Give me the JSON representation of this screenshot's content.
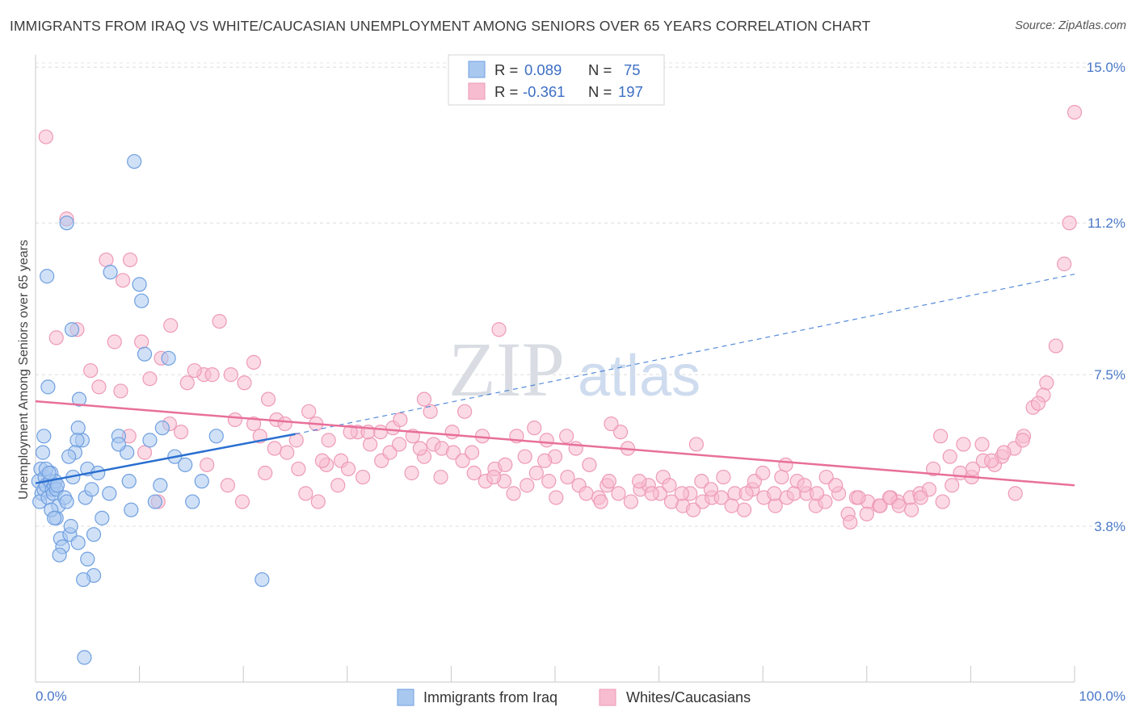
{
  "title": "IMMIGRANTS FROM IRAQ VS WHITE/CAUCASIAN UNEMPLOYMENT AMONG SENIORS OVER 65 YEARS CORRELATION CHART",
  "source": "Source: ZipAtlas.com",
  "watermark": {
    "zip": "ZIP",
    "atlas": "atlas"
  },
  "colors": {
    "blue_fill": "#a9c8f0",
    "blue_stroke": "#6f9fe0",
    "blue_line": "#2a6fd0",
    "pink_fill": "#f7bcd0",
    "pink_stroke": "#ee9ab8",
    "pink_line": "#e8709a",
    "tick_text": "#4a78c8"
  },
  "legend_top": {
    "rows": [
      {
        "r_label": "R =",
        "r_value": "0.089",
        "n_label": "N =",
        "n_value": "75",
        "color": "blue"
      },
      {
        "r_label": "R =",
        "r_value": "-0.361",
        "n_label": "N =",
        "n_value": "197",
        "color": "pink"
      }
    ]
  },
  "chart_data": {
    "type": "scatter",
    "title": "IMMIGRANTS FROM IRAQ VS WHITE/CAUCASIAN UNEMPLOYMENT AMONG SENIORS OVER 65 YEARS CORRELATION CHART",
    "xlabel": "",
    "ylabel": "Unemployment Among Seniors over 65 years",
    "x_tick_labels": [
      "0.0%",
      "100.0%"
    ],
    "y_tick_labels": [
      "3.8%",
      "7.5%",
      "11.2%",
      "15.0%"
    ],
    "y_ticks": [
      3.8,
      7.5,
      11.2,
      15.0
    ],
    "xlim": [
      0,
      100
    ],
    "ylim": [
      0.0,
      15.3
    ],
    "grid": true,
    "legend_placement": "bottom",
    "series": [
      {
        "name": "Immigrants from Iraq",
        "color": "blue",
        "points": [
          [
            0.3,
            4.9
          ],
          [
            0.5,
            5.2
          ],
          [
            0.6,
            4.6
          ],
          [
            0.8,
            4.7
          ],
          [
            0.4,
            4.4
          ],
          [
            0.9,
            5.0
          ],
          [
            1.0,
            4.8
          ],
          [
            1.2,
            4.5
          ],
          [
            1.4,
            4.9
          ],
          [
            1.5,
            5.1
          ],
          [
            1.6,
            4.7
          ],
          [
            1.7,
            4.6
          ],
          [
            1.8,
            4.8
          ],
          [
            1.9,
            4.9
          ],
          [
            2.0,
            4.7
          ],
          [
            2.1,
            4.8
          ],
          [
            0.7,
            5.6
          ],
          [
            0.8,
            6.0
          ],
          [
            1.0,
            5.2
          ],
          [
            1.3,
            5.1
          ],
          [
            1.1,
            9.9
          ],
          [
            2.0,
            4.0
          ],
          [
            2.2,
            4.3
          ],
          [
            2.4,
            3.5
          ],
          [
            2.6,
            3.3
          ],
          [
            1.5,
            4.2
          ],
          [
            1.8,
            4.0
          ],
          [
            2.8,
            4.5
          ],
          [
            3.0,
            4.4
          ],
          [
            3.3,
            3.6
          ],
          [
            3.4,
            3.8
          ],
          [
            4.1,
            3.4
          ],
          [
            4.5,
            5.9
          ],
          [
            4.8,
            4.5
          ],
          [
            4.2,
            6.9
          ],
          [
            4.1,
            6.2
          ],
          [
            4.0,
            5.9
          ],
          [
            3.6,
            5.0
          ],
          [
            3.8,
            5.6
          ],
          [
            3.2,
            5.5
          ],
          [
            5.0,
            5.2
          ],
          [
            5.4,
            4.7
          ],
          [
            5.6,
            2.6
          ],
          [
            4.6,
            2.5
          ],
          [
            5.0,
            3.0
          ],
          [
            5.6,
            3.6
          ],
          [
            6.0,
            5.1
          ],
          [
            6.4,
            4.0
          ],
          [
            7.1,
            4.6
          ],
          [
            8.0,
            6.0
          ],
          [
            8.8,
            5.6
          ],
          [
            9.2,
            4.2
          ],
          [
            10.5,
            8.0
          ],
          [
            11.0,
            5.9
          ],
          [
            11.5,
            4.4
          ],
          [
            12.0,
            4.8
          ],
          [
            12.2,
            6.2
          ],
          [
            12.8,
            7.9
          ],
          [
            13.4,
            5.5
          ],
          [
            14.4,
            5.3
          ],
          [
            15.1,
            4.4
          ],
          [
            16.0,
            4.9
          ],
          [
            17.4,
            6.0
          ],
          [
            21.8,
            2.5
          ],
          [
            3.0,
            11.2
          ],
          [
            3.5,
            8.6
          ],
          [
            7.2,
            10.0
          ],
          [
            8.0,
            5.8
          ],
          [
            9.0,
            4.9
          ],
          [
            9.5,
            12.7
          ],
          [
            10.0,
            9.7
          ],
          [
            10.2,
            9.3
          ],
          [
            1.2,
            7.2
          ],
          [
            2.3,
            3.1
          ],
          [
            4.7,
            0.6
          ]
        ]
      },
      {
        "name": "Whites/Caucasians",
        "color": "pink",
        "points": [
          [
            1.0,
            13.3
          ],
          [
            3.0,
            11.3
          ],
          [
            6.8,
            10.3
          ],
          [
            7.6,
            8.3
          ],
          [
            8.4,
            9.8
          ],
          [
            9.1,
            10.3
          ],
          [
            10.2,
            8.3
          ],
          [
            11.0,
            7.4
          ],
          [
            12.1,
            7.9
          ],
          [
            13.0,
            8.7
          ],
          [
            14.6,
            7.3
          ],
          [
            16.2,
            7.5
          ],
          [
            17.0,
            7.5
          ],
          [
            18.8,
            7.5
          ],
          [
            19.2,
            6.4
          ],
          [
            20.1,
            7.3
          ],
          [
            21.0,
            6.3
          ],
          [
            21.6,
            6.0
          ],
          [
            22.4,
            6.9
          ],
          [
            23.0,
            5.7
          ],
          [
            24.2,
            5.6
          ],
          [
            25.1,
            5.9
          ],
          [
            26.3,
            6.6
          ],
          [
            27.0,
            6.3
          ],
          [
            28.2,
            5.9
          ],
          [
            29.4,
            5.4
          ],
          [
            30.1,
            5.2
          ],
          [
            31.0,
            6.1
          ],
          [
            32.2,
            5.8
          ],
          [
            33.3,
            5.4
          ],
          [
            34.1,
            5.6
          ],
          [
            35.0,
            5.8
          ],
          [
            36.2,
            5.1
          ],
          [
            37.4,
            5.5
          ],
          [
            38.3,
            5.8
          ],
          [
            39.1,
            5.7
          ],
          [
            40.2,
            5.6
          ],
          [
            41.1,
            5.4
          ],
          [
            42.0,
            5.6
          ],
          [
            43.3,
            4.9
          ],
          [
            44.2,
            5.2
          ],
          [
            45.1,
            4.9
          ],
          [
            46.0,
            4.6
          ],
          [
            47.3,
            4.8
          ],
          [
            48.2,
            5.1
          ],
          [
            49.4,
            4.9
          ],
          [
            50.1,
            4.5
          ],
          [
            51.2,
            5.0
          ],
          [
            52.3,
            4.8
          ],
          [
            53.0,
            4.6
          ],
          [
            54.2,
            4.5
          ],
          [
            55.0,
            4.8
          ],
          [
            56.1,
            4.6
          ],
          [
            57.3,
            4.4
          ],
          [
            58.2,
            4.7
          ],
          [
            59.0,
            4.8
          ],
          [
            60.1,
            4.6
          ],
          [
            61.2,
            4.4
          ],
          [
            62.3,
            4.3
          ],
          [
            63.0,
            4.6
          ],
          [
            64.2,
            4.4
          ],
          [
            65.1,
            4.5
          ],
          [
            66.0,
            4.5
          ],
          [
            67.3,
            4.6
          ],
          [
            68.2,
            4.2
          ],
          [
            69.0,
            4.7
          ],
          [
            70.1,
            4.5
          ],
          [
            71.2,
            4.3
          ],
          [
            72.3,
            4.5
          ],
          [
            73.0,
            4.6
          ],
          [
            74.2,
            4.6
          ],
          [
            75.1,
            4.3
          ],
          [
            76.0,
            4.4
          ],
          [
            77.3,
            4.6
          ],
          [
            78.2,
            4.1
          ],
          [
            79.0,
            4.5
          ],
          [
            80.1,
            4.4
          ],
          [
            81.2,
            4.3
          ],
          [
            82.3,
            4.5
          ],
          [
            83.0,
            4.4
          ],
          [
            84.2,
            4.5
          ],
          [
            85.1,
            4.6
          ],
          [
            86.0,
            4.7
          ],
          [
            87.3,
            4.4
          ],
          [
            88.2,
            4.8
          ],
          [
            89.0,
            5.1
          ],
          [
            90.1,
            5.0
          ],
          [
            91.2,
            5.4
          ],
          [
            92.3,
            5.3
          ],
          [
            93.0,
            5.5
          ],
          [
            94.2,
            5.7
          ],
          [
            95.1,
            6.0
          ],
          [
            96.0,
            6.7
          ],
          [
            97.3,
            7.3
          ],
          [
            98.2,
            8.2
          ],
          [
            99.0,
            10.2
          ],
          [
            99.5,
            11.2
          ],
          [
            100.0,
            13.9
          ],
          [
            97.0,
            7.0
          ],
          [
            96.5,
            6.8
          ],
          [
            2.0,
            8.4
          ],
          [
            4.0,
            8.6
          ],
          [
            5.3,
            7.6
          ],
          [
            6.1,
            7.2
          ],
          [
            8.2,
            7.1
          ],
          [
            9.0,
            6.0
          ],
          [
            10.5,
            5.6
          ],
          [
            11.8,
            4.4
          ],
          [
            12.9,
            6.3
          ],
          [
            14.0,
            6.1
          ],
          [
            15.3,
            7.6
          ],
          [
            16.5,
            5.3
          ],
          [
            17.7,
            8.8
          ],
          [
            18.5,
            4.8
          ],
          [
            19.9,
            4.4
          ],
          [
            21.0,
            7.8
          ],
          [
            22.1,
            5.1
          ],
          [
            23.2,
            6.4
          ],
          [
            24.0,
            6.3
          ],
          [
            25.3,
            5.2
          ],
          [
            26.0,
            4.6
          ],
          [
            27.2,
            4.4
          ],
          [
            28.0,
            5.3
          ],
          [
            29.1,
            4.8
          ],
          [
            30.3,
            6.1
          ],
          [
            31.5,
            5.0
          ],
          [
            32.0,
            6.1
          ],
          [
            33.2,
            6.1
          ],
          [
            34.4,
            6.2
          ],
          [
            35.1,
            6.4
          ],
          [
            36.3,
            6.0
          ],
          [
            37.0,
            5.7
          ],
          [
            38.0,
            6.6
          ],
          [
            39.0,
            5.0
          ],
          [
            40.1,
            6.1
          ],
          [
            41.3,
            6.6
          ],
          [
            42.2,
            5.1
          ],
          [
            43.0,
            6.0
          ],
          [
            44.1,
            5.0
          ],
          [
            45.2,
            5.3
          ],
          [
            46.3,
            6.0
          ],
          [
            47.1,
            5.5
          ],
          [
            48.0,
            6.2
          ],
          [
            49.2,
            5.9
          ],
          [
            50.0,
            5.5
          ],
          [
            51.1,
            6.0
          ],
          [
            52.0,
            5.7
          ],
          [
            53.3,
            5.3
          ],
          [
            54.4,
            4.4
          ],
          [
            55.2,
            4.9
          ],
          [
            56.3,
            6.1
          ],
          [
            57.0,
            5.7
          ],
          [
            58.1,
            4.9
          ],
          [
            59.3,
            4.6
          ],
          [
            60.4,
            5.0
          ],
          [
            61.0,
            4.8
          ],
          [
            62.2,
            4.6
          ],
          [
            63.3,
            4.2
          ],
          [
            64.1,
            4.9
          ],
          [
            65.0,
            4.7
          ],
          [
            66.2,
            5.0
          ],
          [
            67.0,
            4.3
          ],
          [
            68.4,
            4.6
          ],
          [
            69.2,
            4.9
          ],
          [
            70.0,
            5.1
          ],
          [
            71.1,
            4.6
          ],
          [
            72.2,
            5.3
          ],
          [
            73.3,
            4.9
          ],
          [
            74.0,
            4.8
          ],
          [
            75.2,
            4.6
          ],
          [
            76.1,
            5.0
          ],
          [
            77.0,
            4.8
          ],
          [
            78.4,
            3.9
          ],
          [
            79.2,
            4.5
          ],
          [
            80.0,
            4.1
          ],
          [
            81.3,
            4.3
          ],
          [
            82.2,
            4.5
          ],
          [
            83.1,
            4.3
          ],
          [
            84.3,
            4.2
          ],
          [
            85.2,
            4.5
          ],
          [
            86.4,
            5.2
          ],
          [
            87.1,
            6.0
          ],
          [
            88.0,
            5.5
          ],
          [
            89.3,
            5.8
          ],
          [
            90.2,
            5.2
          ],
          [
            91.1,
            5.8
          ],
          [
            92.0,
            5.4
          ],
          [
            93.2,
            5.6
          ],
          [
            94.3,
            4.6
          ],
          [
            95.0,
            5.9
          ],
          [
            55.4,
            6.3
          ],
          [
            49.0,
            5.4
          ],
          [
            63.6,
            5.8
          ],
          [
            71.8,
            5.0
          ],
          [
            44.6,
            8.6
          ],
          [
            37.4,
            6.9
          ],
          [
            27.6,
            5.4
          ]
        ]
      }
    ],
    "trend_lines": [
      {
        "series": "Immigrants from Iraq",
        "solid_from_x": 0,
        "solid_to_x": 25,
        "dashed_to_x": 100,
        "y_at_0": 4.85,
        "y_at_25": 6.05,
        "y_at_100": 9.95
      },
      {
        "series": "Whites/Caucasians",
        "from_x": 0,
        "to_x": 100,
        "y_at_0": 6.85,
        "y_at_100": 4.8
      }
    ]
  },
  "legend_bottom": {
    "items": [
      {
        "label": "Immigrants from Iraq",
        "color": "blue"
      },
      {
        "label": "Whites/Caucasians",
        "color": "pink"
      }
    ]
  }
}
